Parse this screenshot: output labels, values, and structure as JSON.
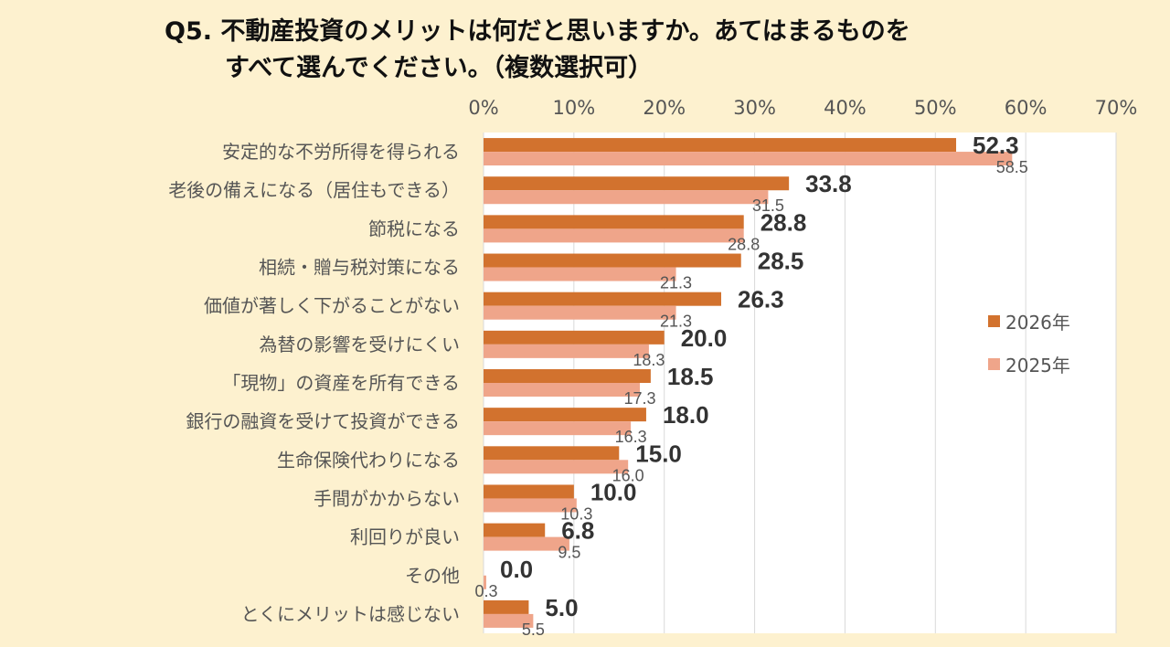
{
  "title_line1": "Q5. 不動産投資のメリットは何だと思いますか。あてはまるものを",
  "title_line2": "すべて選んでください。（複数選択可）",
  "chart_data": {
    "type": "bar",
    "orientation": "horizontal",
    "categories": [
      "安定的な不労所得を得られる",
      "老後の備えになる（居住もできる）",
      "節税になる",
      "相続・贈与税対策になる",
      "価値が著しく下がることがない",
      "為替の影響を受けにくい",
      "「現物」の資産を所有できる",
      "銀行の融資を受けて投資ができる",
      "生命保険代わりになる",
      "手間がかからない",
      "利回りが良い",
      "その他",
      "とくにメリットは感じない"
    ],
    "series": [
      {
        "name": "2026年",
        "color": "#d2722e",
        "values": [
          52.3,
          33.8,
          28.8,
          28.5,
          26.3,
          20.0,
          18.5,
          18.0,
          15.0,
          10.0,
          6.8,
          0.0,
          5.0
        ]
      },
      {
        "name": "2025年",
        "color": "#efa58a",
        "values": [
          58.5,
          31.5,
          28.8,
          21.3,
          21.3,
          18.3,
          17.3,
          16.3,
          16.0,
          10.3,
          9.5,
          0.3,
          5.5
        ]
      }
    ],
    "xlim": [
      0,
      70
    ],
    "xticks": [
      "0%",
      "10%",
      "20%",
      "30%",
      "40%",
      "50%",
      "60%",
      "70%"
    ],
    "grid": true,
    "legend_position": "right"
  }
}
